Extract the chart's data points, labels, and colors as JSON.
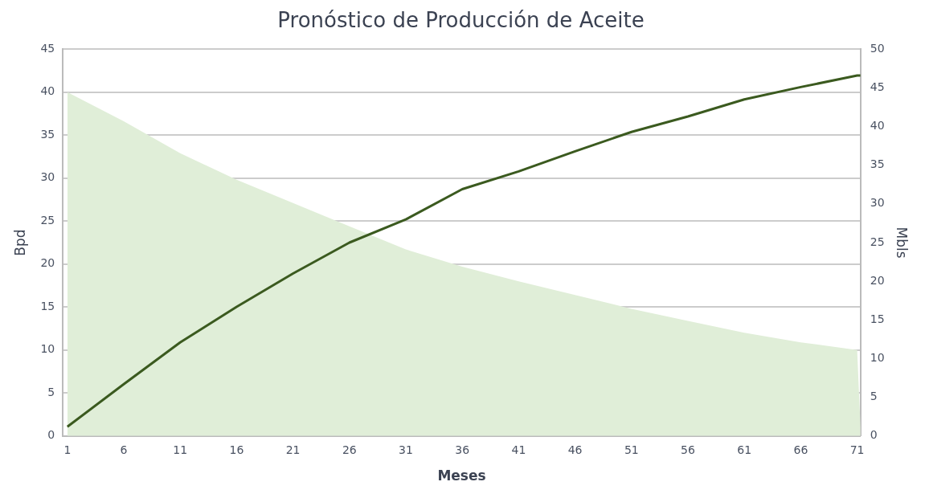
{
  "chart_data": {
    "type": "area",
    "title": "Pronóstico de Producción de Aceite",
    "xlabel": "Meses",
    "ylabel": "Bpd",
    "y2label": "Mbls",
    "xlim": [
      0.6,
      71.3
    ],
    "xticks": [
      1,
      6,
      11,
      16,
      21,
      26,
      31,
      36,
      41,
      46,
      51,
      56,
      61,
      66,
      71
    ],
    "ylim": [
      0,
      45
    ],
    "yticks": [
      0,
      5,
      10,
      15,
      20,
      25,
      30,
      35,
      40,
      45
    ],
    "y2lim": [
      0,
      50
    ],
    "y2ticks": [
      0,
      5,
      10,
      15,
      20,
      25,
      30,
      35,
      40,
      45,
      50
    ],
    "grid": "y",
    "legend": false,
    "series": [
      {
        "color": "#e0eed8",
        "x": [
          1,
          6,
          11,
          16,
          21,
          26,
          31,
          36,
          41,
          46,
          51,
          56,
          61,
          66,
          71,
          71.3
        ],
        "values": [
          40,
          36.6,
          32.9,
          29.8,
          27.1,
          24.4,
          21.7,
          19.7,
          18,
          16.4,
          14.8,
          13.4,
          12,
          10.9,
          10,
          1
        ]
      },
      {
        "type": "line",
        "axis": "y2",
        "color": "#3b5a1f",
        "x": [
          1,
          6,
          11,
          16,
          21,
          26,
          31,
          36,
          41,
          46,
          51,
          56,
          61,
          66,
          71,
          71.3
        ],
        "values": [
          1.2,
          6.7,
          12.1,
          16.7,
          21,
          25,
          28,
          31.9,
          34.2,
          36.8,
          39.3,
          41.3,
          43.5,
          45.1,
          46.6,
          46.6
        ]
      }
    ]
  }
}
